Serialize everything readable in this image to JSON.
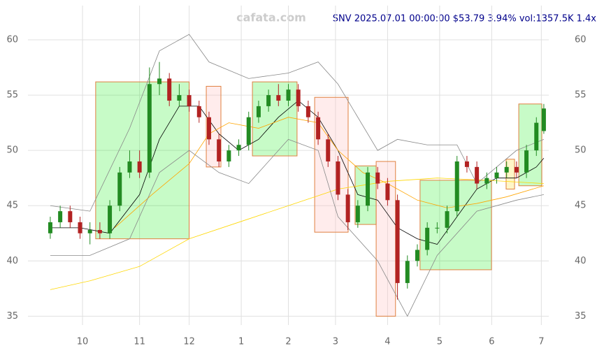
{
  "chart_data": {
    "type": "candlestick",
    "title": "SNV 2025.07.01 00:00:00 $53.79 3.94% vol:1357.5K 1.4x",
    "watermark": "cafata.com",
    "xlim": [
      -5,
      205
    ],
    "xticks": [
      {
        "value": 17,
        "label": "10"
      },
      {
        "value": 40,
        "label": "11"
      },
      {
        "value": 60,
        "label": "12"
      },
      {
        "value": 81,
        "label": "1"
      },
      {
        "value": 100,
        "label": "2"
      },
      {
        "value": 119,
        "label": "3"
      },
      {
        "value": 140,
        "label": "4"
      },
      {
        "value": 161,
        "label": "5"
      },
      {
        "value": 182,
        "label": "6"
      },
      {
        "value": 202,
        "label": "7"
      }
    ],
    "ylim": [
      34.2,
      63.1
    ],
    "yticks": [
      35,
      40,
      45,
      50,
      55,
      60
    ],
    "grid": true,
    "up_color": "#228b22",
    "down_color": "#b22222",
    "candles": {
      "x": [
        4,
        8,
        12,
        16,
        20,
        24,
        28,
        32,
        36,
        40,
        44,
        48,
        52,
        56,
        60,
        64,
        68,
        72,
        76,
        80,
        84,
        88,
        92,
        96,
        100,
        104,
        108,
        112,
        116,
        120,
        124,
        128,
        132,
        136,
        140,
        144,
        148,
        152,
        156,
        160,
        164,
        168,
        172,
        176,
        180,
        184,
        188,
        192,
        196,
        200,
        203
      ],
      "open": [
        42.5,
        43.5,
        44.5,
        43.5,
        42.5,
        42.8,
        42.5,
        45,
        48,
        49,
        48,
        56,
        56.5,
        54.5,
        55,
        54,
        53,
        51,
        49,
        50,
        50.5,
        53,
        54,
        55,
        54.5,
        55.5,
        54,
        53,
        51,
        49,
        46,
        43.5,
        45,
        48,
        47,
        45.5,
        38,
        40,
        41,
        43,
        43,
        44.5,
        49,
        48.5,
        47,
        47.5,
        48,
        48.5,
        48,
        50,
        51.75
      ],
      "high": [
        44,
        45,
        45,
        44,
        43.5,
        43.5,
        45.5,
        48.5,
        50,
        50,
        57.5,
        58,
        57,
        56,
        55.5,
        54.5,
        53.5,
        51.5,
        50.5,
        51,
        53.5,
        54.5,
        55.5,
        56,
        56,
        56,
        54.5,
        53.5,
        51.5,
        49.5,
        46.5,
        45.5,
        48.5,
        48.5,
        47.5,
        46,
        40.5,
        41.5,
        43.5,
        43.5,
        45,
        49.5,
        49.5,
        49,
        48,
        48.5,
        49,
        49,
        50.5,
        53,
        54.2
      ],
      "low": [
        42,
        43,
        43,
        42,
        41.5,
        42,
        42,
        44.5,
        47.5,
        47.5,
        47.5,
        55,
        54,
        54,
        53.5,
        52.5,
        50.5,
        48.5,
        48.5,
        49.5,
        50,
        52.5,
        53.5,
        54,
        54,
        53.5,
        52.5,
        50.5,
        48.5,
        45.5,
        42.8,
        43,
        44.5,
        46.5,
        45,
        36.5,
        37.5,
        39.5,
        40.5,
        42.5,
        42.5,
        44,
        48,
        46.5,
        46.5,
        47,
        47.5,
        47.5,
        47.5,
        49.5,
        51.5
      ],
      "close": [
        43.5,
        44.5,
        43.5,
        42.5,
        42.8,
        42.5,
        45,
        48,
        49,
        48,
        56,
        56.5,
        54.5,
        55,
        54,
        53,
        51,
        49,
        50,
        50.5,
        53,
        54,
        55,
        54.5,
        55.5,
        54,
        53,
        51,
        49,
        46,
        43.5,
        45,
        48,
        47,
        45.5,
        38,
        40,
        41,
        43,
        43,
        44.5,
        49,
        48.5,
        47,
        47.5,
        48,
        48.5,
        48,
        50,
        52.5,
        53.79
      ]
    },
    "lines": [
      {
        "color": "#000000",
        "x": [
          4,
          16,
          28,
          40,
          48,
          56,
          64,
          72,
          80,
          88,
          96,
          104,
          112,
          120,
          128,
          136,
          144,
          152,
          160,
          168,
          176,
          184,
          192,
          200,
          203
        ],
        "values": [
          43,
          43,
          42.5,
          46,
          51,
          54,
          54,
          51.5,
          50,
          51,
          53,
          54.5,
          53,
          50,
          46,
          45.5,
          43,
          42,
          41.5,
          44,
          46.5,
          47.5,
          47.5,
          48.5,
          49.3
        ]
      },
      {
        "color": "#ffa500",
        "x": [
          30,
          45,
          60,
          68,
          76,
          88,
          100,
          112,
          120,
          130,
          140,
          152,
          164,
          176,
          188,
          203
        ],
        "values": [
          43,
          46,
          48.8,
          51.5,
          52.5,
          52,
          53,
          52.5,
          50,
          48,
          47,
          45.5,
          44.8,
          45.2,
          45.8,
          46.8
        ]
      },
      {
        "color": "#ffd700",
        "x": [
          4,
          20,
          40,
          60,
          80,
          100,
          120,
          140,
          160,
          180,
          203
        ],
        "values": [
          37.4,
          38.2,
          39.5,
          42,
          43.5,
          45,
          46.5,
          47.2,
          47.5,
          47.3,
          47
        ]
      },
      {
        "color": "#888888",
        "x": [
          4,
          20,
          36,
          48,
          60,
          68,
          84,
          100,
          112,
          120,
          136,
          144,
          156,
          168,
          176,
          192,
          203
        ],
        "values": [
          45,
          44.5,
          52,
          59,
          60.5,
          58,
          56.5,
          57,
          58,
          56,
          50,
          51,
          50.5,
          50.5,
          47,
          50,
          51
        ]
      },
      {
        "color": "#888888",
        "x": [
          4,
          20,
          36,
          48,
          60,
          72,
          84,
          100,
          112,
          120,
          136,
          148,
          160,
          176,
          192,
          203
        ],
        "values": [
          40.5,
          40.5,
          42,
          48,
          50,
          48,
          47,
          51,
          50,
          44,
          40,
          35,
          40.5,
          44.5,
          45.5,
          46
        ]
      }
    ],
    "boxes": [
      {
        "color": "#00ee00",
        "x": [
          22.3,
          60
        ],
        "y": [
          42,
          56.2
        ]
      },
      {
        "color": "#ffc0c0",
        "x": [
          66.9,
          72.8
        ],
        "y": [
          48.5,
          55.8
        ]
      },
      {
        "color": "#00ee00",
        "x": [
          85.5,
          103.5
        ],
        "y": [
          49.5,
          56.2
        ]
      },
      {
        "color": "#ffc0c0",
        "x": [
          110.6,
          124.1
        ],
        "y": [
          42.6,
          54.8
        ]
      },
      {
        "color": "#00ee00",
        "x": [
          126.9,
          135.4
        ],
        "y": [
          43.3,
          48.6
        ]
      },
      {
        "color": "#ffc0c0",
        "x": [
          135.4,
          143.2
        ],
        "y": [
          35,
          49
        ]
      },
      {
        "color": "#00ee00",
        "x": [
          153.1,
          181.9
        ],
        "y": [
          39.2,
          47.3
        ]
      },
      {
        "color": "#ffd700",
        "x": [
          187.8,
          191.2
        ],
        "y": [
          46.5,
          49.2
        ]
      },
      {
        "color": "#00ee00",
        "x": [
          192.9,
          202.2
        ],
        "y": [
          46.8,
          54.2
        ]
      }
    ]
  }
}
